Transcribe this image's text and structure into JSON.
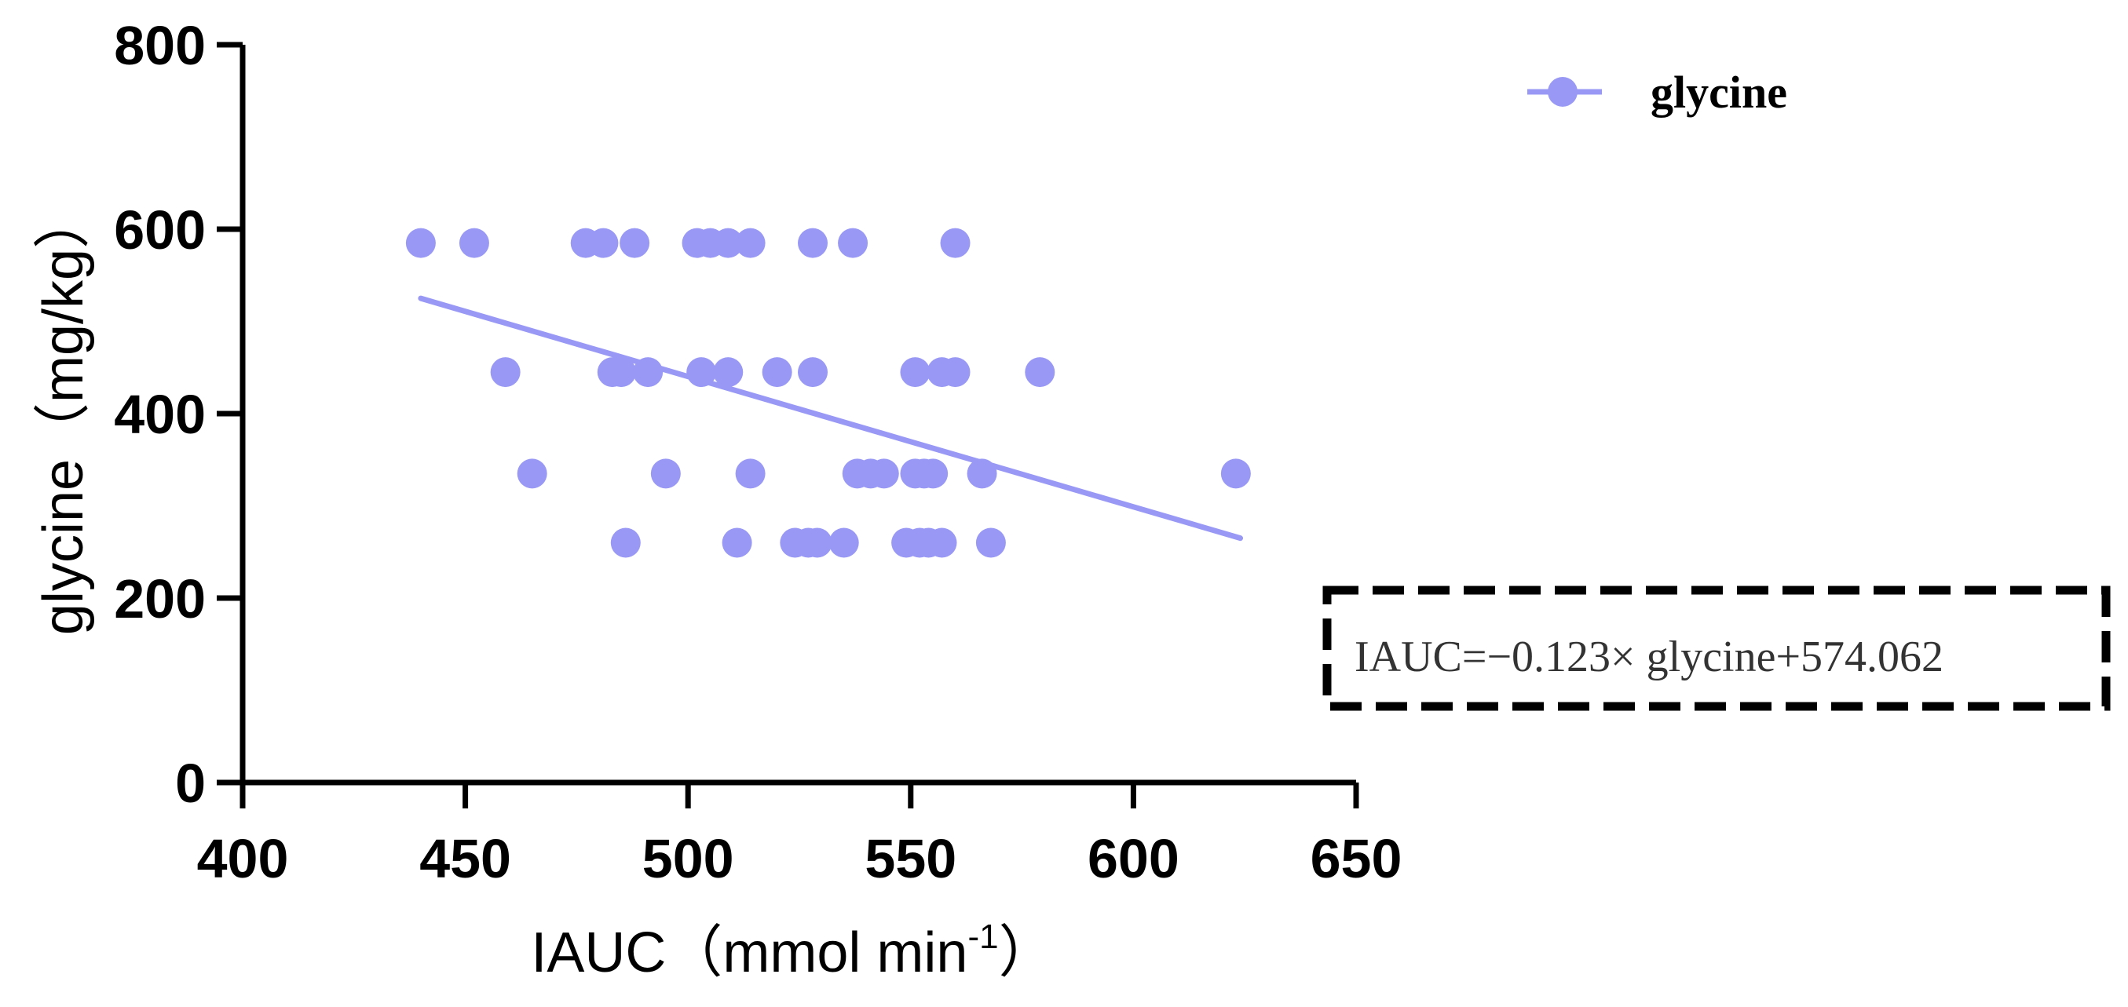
{
  "chart_data": {
    "type": "scatter",
    "xlabel": "IAUC（mmol min",
    "xlabel_sup": "-1",
    "xlabel_close": "）",
    "ylabel": "glycine（mg/kg）",
    "xlim": [
      400,
      650
    ],
    "ylim": [
      0,
      800
    ],
    "x_ticks": [
      "400",
      "450",
      "500",
      "550",
      "600",
      "650"
    ],
    "y_ticks": [
      "0",
      "200",
      "400",
      "600",
      "800"
    ],
    "grid": false,
    "legend_position": "top-right",
    "series": [
      {
        "name": "glycine",
        "color": "#9999f5",
        "points": [
          [
            440,
            585
          ],
          [
            452,
            585
          ],
          [
            477,
            585
          ],
          [
            481,
            585
          ],
          [
            488,
            585
          ],
          [
            502,
            585
          ],
          [
            505,
            585
          ],
          [
            509,
            585
          ],
          [
            514,
            585
          ],
          [
            528,
            585
          ],
          [
            537,
            585
          ],
          [
            560,
            585
          ],
          [
            459,
            445
          ],
          [
            483,
            445
          ],
          [
            485,
            445
          ],
          [
            491,
            445
          ],
          [
            503,
            445
          ],
          [
            509,
            445
          ],
          [
            520,
            445
          ],
          [
            528,
            445
          ],
          [
            551,
            445
          ],
          [
            557,
            445
          ],
          [
            560,
            445
          ],
          [
            579,
            445
          ],
          [
            465,
            335
          ],
          [
            495,
            335
          ],
          [
            514,
            335
          ],
          [
            538,
            335
          ],
          [
            541,
            335
          ],
          [
            544,
            335
          ],
          [
            551,
            335
          ],
          [
            553,
            335
          ],
          [
            555,
            335
          ],
          [
            566,
            335
          ],
          [
            623,
            335
          ],
          [
            486,
            260
          ],
          [
            511,
            260
          ],
          [
            524,
            260
          ],
          [
            527,
            260
          ],
          [
            529,
            260
          ],
          [
            535,
            260
          ],
          [
            549,
            260
          ],
          [
            552,
            260
          ],
          [
            554,
            260
          ],
          [
            557,
            260
          ],
          [
            568,
            260
          ]
        ]
      }
    ],
    "trendline": {
      "x": [
        440,
        624
      ],
      "y": [
        525,
        265
      ]
    },
    "annotation": "IAUC=−0.123× glycine+574.062"
  }
}
